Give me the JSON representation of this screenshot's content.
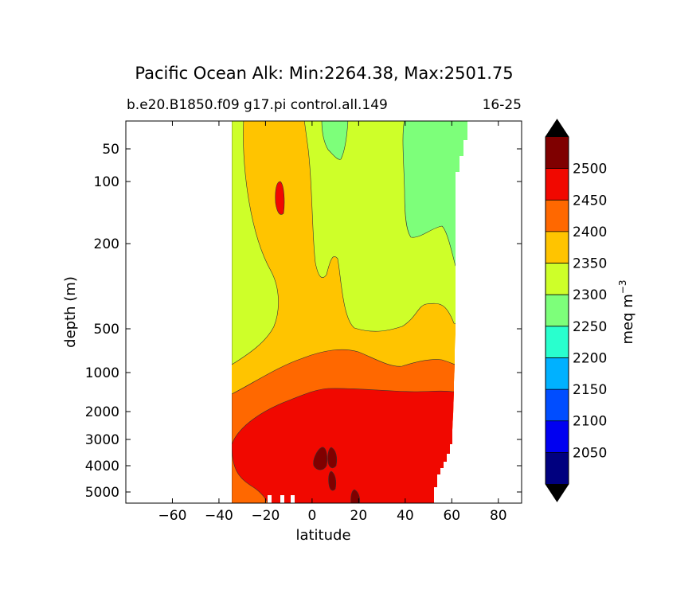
{
  "chart_data": {
    "type": "contourf",
    "title": "Pacific Ocean Alk: Min:2264.38, Max:2501.75",
    "subtitle_left": "b.e20.B1850.f09 g17.pi control.all.149",
    "subtitle_right": "16-25",
    "xlabel": "latitude",
    "ylabel": "depth (m)",
    "xlim": [
      -80,
      90
    ],
    "x_ticks": [
      -60,
      -40,
      -20,
      0,
      20,
      40,
      60,
      80
    ],
    "x_tick_labels": [
      "−60",
      "−40",
      "−20",
      "0",
      "20",
      "40",
      "60",
      "80"
    ],
    "y_ticks": [
      50,
      100,
      200,
      500,
      1000,
      2000,
      3000,
      4000,
      5000
    ],
    "y_tick_labels": [
      "50",
      "100",
      "200",
      "500",
      "1000",
      "2000",
      "3000",
      "4000",
      "5000"
    ],
    "y_inverted": true,
    "colorbar": {
      "label": "meq m",
      "label_superscript": "−3",
      "extend": "both",
      "levels": [
        2000,
        2050,
        2100,
        2150,
        2200,
        2250,
        2300,
        2350,
        2400,
        2450,
        2500,
        2550
      ],
      "tick_labels": [
        "2050",
        "2100",
        "2150",
        "2200",
        "2250",
        "2300",
        "2350",
        "2400",
        "2450",
        "2500"
      ],
      "colors": [
        "#00007f",
        "#0000f1",
        "#004dff",
        "#00b1ff",
        "#29ffce",
        "#7dff7a",
        "#ceff29",
        "#ffc400",
        "#ff6800",
        "#f10800",
        "#7f0000"
      ],
      "over_color": "#000000",
      "under_color": "#000000"
    },
    "bands": [
      {
        "range": "2300-2350",
        "color": "#ceff29"
      },
      {
        "range": "2350-2400",
        "color": "#ffc400"
      },
      {
        "range": "2250-2300",
        "color": "#7dff7a"
      },
      {
        "range": "2400-2450",
        "color": "#ff6800"
      },
      {
        "range": "2450-2500",
        "color": "#f10800"
      },
      {
        "range": "2500-2550",
        "color": "#7f0000"
      }
    ]
  }
}
